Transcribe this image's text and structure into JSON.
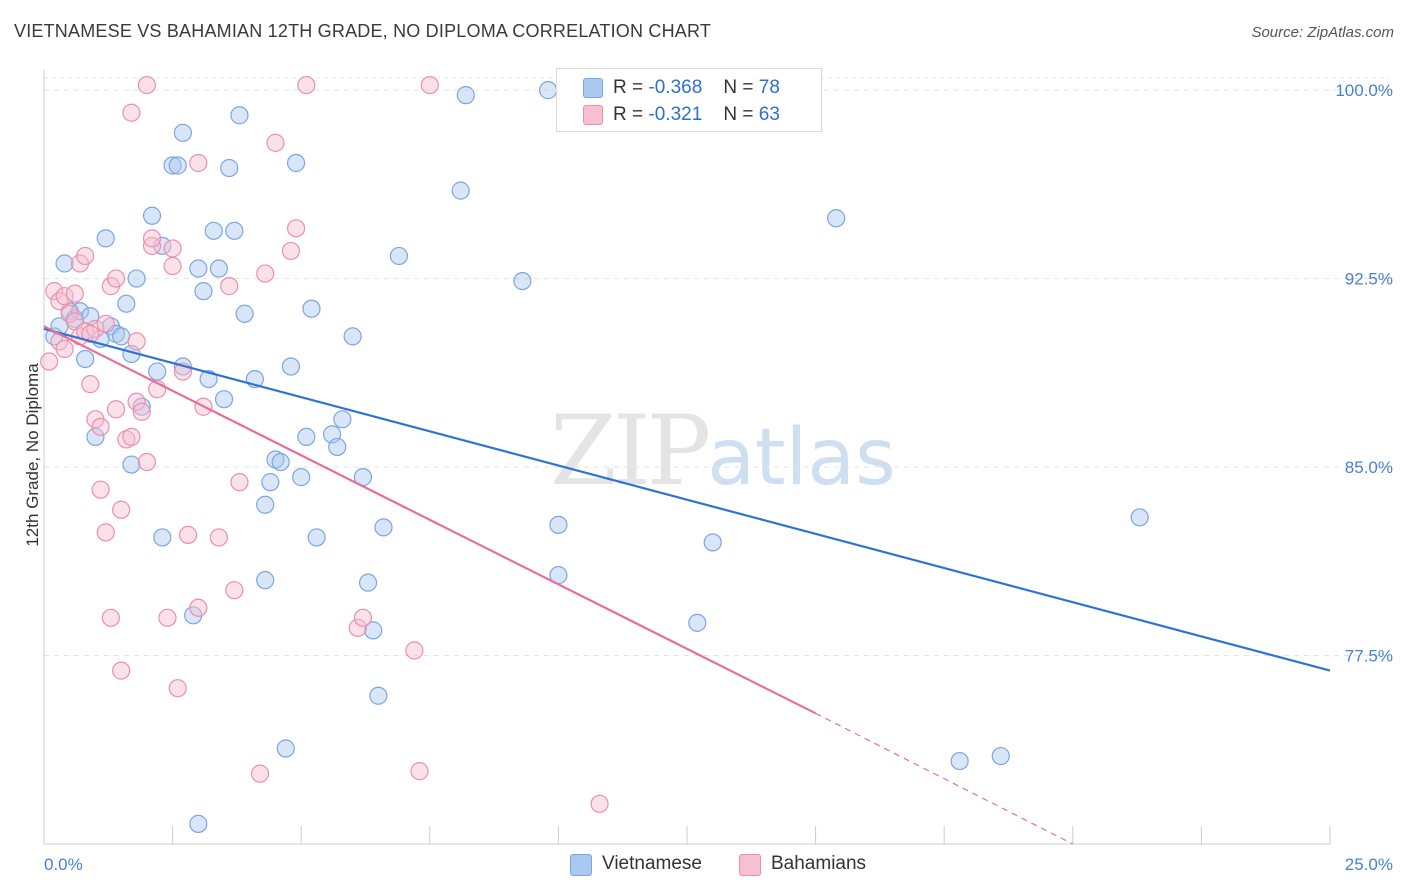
{
  "header": {
    "title": "VIETNAMESE VS BAHAMIAN 12TH GRADE, NO DIPLOMA CORRELATION CHART",
    "source": "Source: ZipAtlas.com"
  },
  "watermark": {
    "zip": "ZIP",
    "atlas": "atlas"
  },
  "legend": {
    "rows": [
      {
        "r_label": "R =",
        "r_value": "-0.368",
        "n_label": "N =",
        "n_value": "78",
        "color": "#aac8f0",
        "border": "#7aa6e3"
      },
      {
        "r_label": "R =",
        "r_value": "-0.321",
        "n_label": "N =",
        "n_value": "63",
        "color": "#f7bfd0",
        "border": "#ec8fac"
      }
    ]
  },
  "bottom_legend": {
    "items": [
      {
        "label": "Vietnamese",
        "color": "#aac8f0",
        "border": "#7aa6e3"
      },
      {
        "label": "Bahamians",
        "color": "#f7bfd0",
        "border": "#ec8fac"
      }
    ]
  },
  "chart_data": {
    "type": "scatter",
    "title": "VIETNAMESE VS BAHAMIAN 12TH GRADE, NO DIPLOMA CORRELATION CHART",
    "xlabel": "",
    "ylabel": "12th Grade, No Diploma",
    "xlim": [
      0,
      25
    ],
    "ylim": [
      70,
      100.8
    ],
    "x_tick_labels": [
      "0.0%",
      "25.0%"
    ],
    "y_ticks": [
      100,
      92.5,
      85,
      77.5
    ],
    "y_tick_labels": [
      "100.0%",
      "92.5%",
      "85.0%",
      "77.5%"
    ],
    "grid": true,
    "legend_position": "top-center",
    "series": [
      {
        "name": "Vietnamese",
        "color": "#aac8f0",
        "stroke": "#7aa6e3",
        "trend_color": "#2f72d6",
        "trend": {
          "x": [
            0,
            25
          ],
          "y": [
            90.5,
            76.9
          ]
        },
        "points": [
          [
            0.2,
            90.2
          ],
          [
            0.3,
            90.6
          ],
          [
            0.4,
            93.1
          ],
          [
            0.5,
            91.2
          ],
          [
            0.6,
            90.9
          ],
          [
            0.7,
            91.2
          ],
          [
            0.8,
            89.3
          ],
          [
            0.9,
            91.0
          ],
          [
            1.0,
            86.2
          ],
          [
            1.1,
            90.1
          ],
          [
            1.2,
            94.1
          ],
          [
            1.3,
            90.6
          ],
          [
            1.4,
            90.3
          ],
          [
            1.5,
            90.2
          ],
          [
            1.6,
            91.5
          ],
          [
            1.7,
            89.5
          ],
          [
            1.7,
            85.1
          ],
          [
            1.8,
            92.5
          ],
          [
            1.9,
            87.4
          ],
          [
            2.1,
            95.0
          ],
          [
            2.2,
            88.8
          ],
          [
            2.3,
            93.8
          ],
          [
            2.3,
            82.2
          ],
          [
            2.5,
            97.0
          ],
          [
            2.6,
            97.0
          ],
          [
            2.7,
            89.0
          ],
          [
            2.7,
            98.3
          ],
          [
            2.9,
            79.1
          ],
          [
            3.0,
            92.9
          ],
          [
            3.1,
            92.0
          ],
          [
            3.2,
            88.5
          ],
          [
            3.3,
            94.4
          ],
          [
            3.4,
            92.9
          ],
          [
            3.5,
            87.7
          ],
          [
            3.6,
            96.9
          ],
          [
            3.7,
            94.4
          ],
          [
            3.8,
            99.0
          ],
          [
            3.9,
            91.1
          ],
          [
            4.1,
            88.5
          ],
          [
            4.3,
            80.5
          ],
          [
            4.3,
            83.5
          ],
          [
            4.4,
            84.4
          ],
          [
            4.5,
            85.3
          ],
          [
            4.6,
            85.2
          ],
          [
            4.7,
            73.8
          ],
          [
            4.8,
            89.0
          ],
          [
            4.9,
            97.1
          ],
          [
            5.0,
            84.6
          ],
          [
            5.1,
            86.2
          ],
          [
            5.2,
            91.3
          ],
          [
            5.3,
            82.2
          ],
          [
            5.6,
            86.3
          ],
          [
            5.7,
            85.8
          ],
          [
            5.8,
            86.9
          ],
          [
            6.0,
            90.2
          ],
          [
            6.2,
            84.6
          ],
          [
            6.3,
            80.4
          ],
          [
            6.4,
            78.5
          ],
          [
            6.5,
            75.9
          ],
          [
            6.6,
            82.6
          ],
          [
            6.9,
            93.4
          ],
          [
            8.1,
            96.0
          ],
          [
            8.2,
            99.8
          ],
          [
            9.3,
            92.4
          ],
          [
            9.8,
            100.0
          ],
          [
            10.0,
            82.7
          ],
          [
            10.0,
            80.7
          ],
          [
            12.7,
            78.8
          ],
          [
            13.0,
            82.0
          ],
          [
            15.4,
            94.9
          ],
          [
            17.8,
            73.3
          ],
          [
            18.6,
            73.5
          ],
          [
            21.3,
            83.0
          ],
          [
            3.0,
            70.8
          ]
        ]
      },
      {
        "name": "Bahamians",
        "color": "#f7bfd0",
        "stroke": "#ec8fac",
        "trend_color": "#e46f98",
        "trend": {
          "x": [
            0,
            15
          ],
          "y": [
            90.6,
            75.2
          ]
        },
        "trend_dashed": {
          "x": [
            15,
            20
          ],
          "y": [
            75.2,
            70.0
          ]
        },
        "points": [
          [
            0.1,
            89.2
          ],
          [
            0.2,
            92.0
          ],
          [
            0.3,
            91.6
          ],
          [
            0.3,
            90.0
          ],
          [
            0.4,
            91.8
          ],
          [
            0.5,
            91.1
          ],
          [
            0.6,
            90.8
          ],
          [
            0.7,
            93.1
          ],
          [
            0.7,
            90.2
          ],
          [
            0.8,
            93.4
          ],
          [
            0.8,
            90.4
          ],
          [
            0.9,
            88.3
          ],
          [
            1.0,
            90.5
          ],
          [
            1.0,
            86.9
          ],
          [
            1.1,
            86.6
          ],
          [
            1.1,
            84.1
          ],
          [
            1.2,
            82.4
          ],
          [
            1.3,
            92.2
          ],
          [
            1.3,
            79.0
          ],
          [
            1.4,
            92.5
          ],
          [
            1.4,
            87.3
          ],
          [
            1.5,
            83.3
          ],
          [
            1.5,
            76.9
          ],
          [
            1.6,
            86.1
          ],
          [
            1.7,
            86.2
          ],
          [
            1.7,
            99.1
          ],
          [
            1.8,
            87.6
          ],
          [
            1.8,
            90.0
          ],
          [
            1.9,
            87.2
          ],
          [
            2.0,
            85.2
          ],
          [
            2.0,
            100.2
          ],
          [
            2.1,
            93.8
          ],
          [
            2.1,
            94.1
          ],
          [
            2.2,
            88.1
          ],
          [
            2.4,
            79.0
          ],
          [
            2.5,
            93.0
          ],
          [
            2.5,
            93.7
          ],
          [
            2.6,
            76.2
          ],
          [
            2.7,
            88.8
          ],
          [
            2.8,
            82.3
          ],
          [
            3.0,
            97.1
          ],
          [
            3.0,
            79.4
          ],
          [
            3.1,
            87.4
          ],
          [
            3.4,
            82.2
          ],
          [
            3.6,
            92.2
          ],
          [
            3.7,
            80.1
          ],
          [
            3.8,
            84.4
          ],
          [
            4.2,
            72.8
          ],
          [
            4.3,
            92.7
          ],
          [
            4.5,
            97.9
          ],
          [
            4.8,
            93.6
          ],
          [
            4.9,
            94.5
          ],
          [
            5.1,
            100.2
          ],
          [
            6.1,
            78.6
          ],
          [
            6.2,
            79.0
          ],
          [
            7.2,
            77.7
          ],
          [
            7.3,
            72.9
          ],
          [
            7.5,
            100.2
          ],
          [
            10.8,
            71.6
          ],
          [
            0.6,
            91.9
          ],
          [
            0.9,
            90.3
          ],
          [
            1.2,
            90.7
          ],
          [
            0.4,
            89.7
          ]
        ]
      }
    ]
  }
}
